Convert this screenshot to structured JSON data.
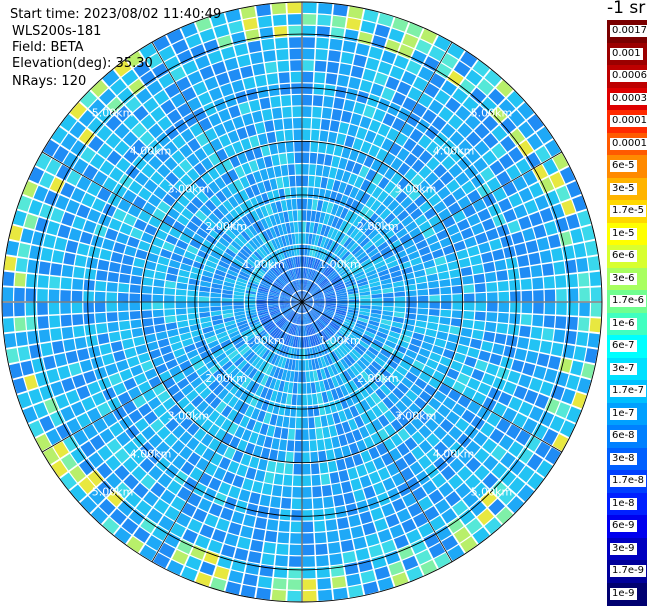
{
  "header": {
    "start_time": "Start time: 2023/08/02 11:40:49",
    "instrument": "WLS200s-181",
    "field": "Field: BETA",
    "elevation": "Elevation(deg): 35.30",
    "nrays": "NRays: 120"
  },
  "colorbar": {
    "unit_label": "-1 sr",
    "labels": [
      "0.0017",
      "0.001",
      "0.0006",
      "0.0003",
      "0.00017",
      "0.0001",
      "6e-5",
      "3e-5",
      "1.7e-5",
      "1e-5",
      "6e-6",
      "3e-6",
      "1.7e-6",
      "1e-6",
      "6e-7",
      "3e-7",
      "1.7e-7",
      "1e-7",
      "6e-8",
      "3e-8",
      "1.7e-8",
      "1e-8",
      "6e-9",
      "3e-9",
      "1.7e-9",
      "1e-9"
    ],
    "colors": [
      "#7a0000",
      "#9b0000",
      "#bd0000",
      "#de0000",
      "#ff2a00",
      "#ff5a00",
      "#ff8a00",
      "#ffb400",
      "#ffd800",
      "#ffff00",
      "#d8ff30",
      "#a8ff60",
      "#70ff90",
      "#40ffc0",
      "#00ffff",
      "#00e0ff",
      "#00c0ff",
      "#00a0ff",
      "#0080ff",
      "#0060ff",
      "#0040ff",
      "#0020ff",
      "#0000ee",
      "#0000c0",
      "#00009a",
      "#000070"
    ]
  },
  "chart_data": {
    "type": "heatmap",
    "projection": "polar PPI",
    "field": "BETA",
    "nrays": 120,
    "range_rings_km": [
      1,
      2,
      3,
      4,
      5
    ],
    "ring_labels": [
      "1.00km",
      "2.00km",
      "3.00km",
      "4.00km",
      "5.00km"
    ],
    "max_range_km": 5.6,
    "spokes_deg": [
      0,
      30,
      60,
      90,
      120,
      150,
      180,
      210,
      240,
      270,
      300,
      330
    ],
    "typical_value_band": "1.7e-7 to 6e-8",
    "enhanced_value_band_outer_edge": "1e-5 to 6e-7",
    "grid": true
  }
}
